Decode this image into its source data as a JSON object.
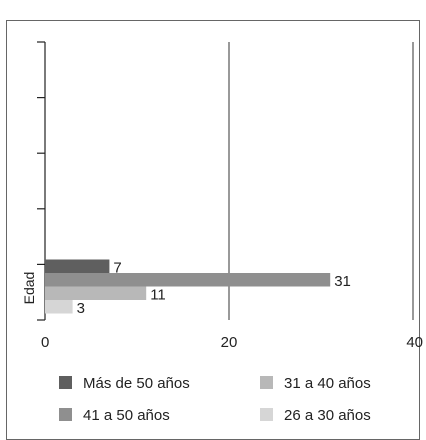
{
  "chart_data": {
    "type": "bar",
    "orientation": "horizontal",
    "ylabel": "Edad",
    "xlim": [
      0,
      40
    ],
    "x_ticks": [
      "0",
      "20",
      "40"
    ],
    "grid": "vertical",
    "legend_position": "bottom",
    "series": [
      {
        "name": "Más de 50 años",
        "value": 7,
        "label": "7",
        "color": "#5f5f5f"
      },
      {
        "name": "41 a 50 años",
        "value": 31,
        "label": "31",
        "color": "#8f8f8f"
      },
      {
        "name": "31 a 40 años",
        "value": 11,
        "label": "11",
        "color": "#b8b8b8"
      },
      {
        "name": "26 a 30 años",
        "value": 3,
        "label": "3",
        "color": "#d6d6d6"
      }
    ]
  }
}
